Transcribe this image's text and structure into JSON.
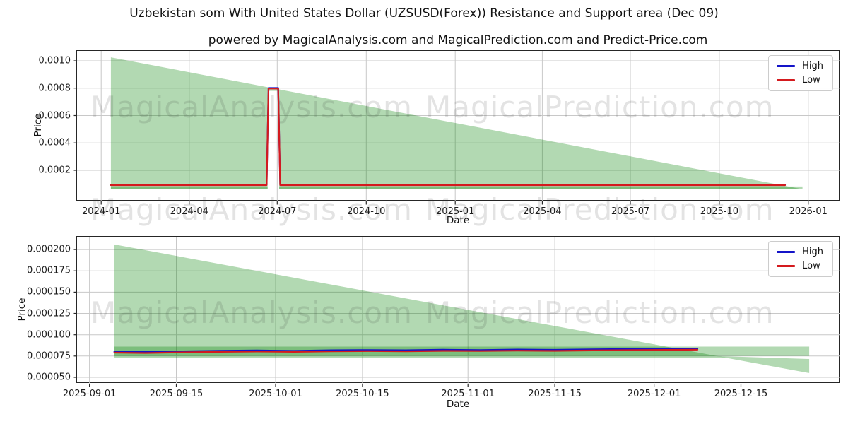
{
  "figure": {
    "suptitle": "Uzbekistan som With United States Dollar (UZSUSD(Forex)) Resistance and Support area (Dec 09)",
    "title": "powered by MagicalAnalysis.com and MagicalPrediction.com and Predict-Price.com"
  },
  "watermarks": {
    "left": "MagicalAnalysis.com",
    "right": "MagicalPrediction.com"
  },
  "colors": {
    "high": "#1414c8",
    "low": "#d41a1e",
    "area_fill": "rgba(0,128,0,0.30)",
    "grid": "#c8c8c8",
    "spine": "#262626"
  },
  "chart_data": [
    {
      "type": "line",
      "xlabel": "Date",
      "ylabel": "Price",
      "grid": true,
      "legend_position": "upper right",
      "x_range": [
        "2023-12-07",
        "2026-02-03"
      ],
      "y_range": [
        -2.71e-05,
        0.0010722
      ],
      "x_ticks": [
        [
          "2024-01-01",
          "2024-01"
        ],
        [
          "2024-04-01",
          "2024-04"
        ],
        [
          "2024-07-01",
          "2024-07"
        ],
        [
          "2024-10-01",
          "2024-10"
        ],
        [
          "2025-01-01",
          "2025-01"
        ],
        [
          "2025-04-01",
          "2025-04"
        ],
        [
          "2025-07-01",
          "2025-07"
        ],
        [
          "2025-10-01",
          "2025-10"
        ],
        [
          "2026-01-01",
          "2026-01"
        ]
      ],
      "y_ticks": [
        [
          0.0002,
          "0.0002"
        ],
        [
          0.0004,
          "0.0004"
        ],
        [
          0.0006,
          "0.0006"
        ],
        [
          0.0008,
          "0.0008"
        ],
        [
          0.001,
          "0.0010"
        ]
      ],
      "series": [
        {
          "name": "High",
          "color": "#1414c8",
          "points": [
            [
              "2024-01-11",
              9.55e-05
            ],
            [
              "2024-06-20",
              9.55e-05
            ],
            [
              "2024-06-22",
              0.000801
            ],
            [
              "2024-07-02",
              0.000801
            ],
            [
              "2024-07-04",
              9.55e-05
            ],
            [
              "2025-12-08",
              9.55e-05
            ]
          ]
        },
        {
          "name": "Low",
          "color": "#d41a1e",
          "points": [
            [
              "2024-01-11",
              9.15e-05
            ],
            [
              "2024-06-20",
              9.15e-05
            ],
            [
              "2024-06-22",
              0.000797
            ],
            [
              "2024-07-02",
              0.000797
            ],
            [
              "2024-07-04",
              9.15e-05
            ],
            [
              "2025-12-08",
              9.15e-05
            ]
          ]
        }
      ],
      "areas": [
        {
          "name": "resistance-triangle",
          "points": [
            [
              "2024-01-11",
              0.001025
            ],
            [
              "2025-12-26",
              6.2e-05
            ],
            [
              "2024-01-11",
              6.2e-05
            ]
          ],
          "holes": [
            [
              [
                "2024-06-21",
                0.00078
              ],
              [
                "2024-07-03",
                0.00078
              ],
              [
                "2024-07-03",
                6.2e-05
              ],
              [
                "2024-06-21",
                6.2e-05
              ]
            ]
          ]
        },
        {
          "name": "support-band-left",
          "points": [
            [
              "2024-01-11",
              8.2e-05
            ],
            [
              "2024-06-21",
              8.2e-05
            ],
            [
              "2024-06-21",
              6.2e-05
            ],
            [
              "2024-01-11",
              6.2e-05
            ]
          ]
        },
        {
          "name": "support-band-right",
          "points": [
            [
              "2024-07-03",
              8.2e-05
            ],
            [
              "2025-12-26",
              8.2e-05
            ],
            [
              "2025-12-26",
              6.2e-05
            ],
            [
              "2024-07-03",
              6.2e-05
            ]
          ]
        }
      ]
    },
    {
      "type": "line",
      "xlabel": "Date",
      "ylabel": "Price",
      "grid": true,
      "legend_position": "upper right",
      "x_range": [
        "2025-08-30",
        "2025-12-31"
      ],
      "y_range": [
        4.25e-05,
        0.000215
      ],
      "x_ticks": [
        [
          "2025-09-01",
          "2025-09-01"
        ],
        [
          "2025-09-15",
          "2025-09-15"
        ],
        [
          "2025-10-01",
          "2025-10-01"
        ],
        [
          "2025-10-15",
          "2025-10-15"
        ],
        [
          "2025-11-01",
          "2025-11-01"
        ],
        [
          "2025-11-15",
          "2025-11-15"
        ],
        [
          "2025-12-01",
          "2025-12-01"
        ],
        [
          "2025-12-15",
          "2025-12-15"
        ]
      ],
      "y_ticks": [
        [
          5e-05,
          "0.000050"
        ],
        [
          7.5e-05,
          "0.000075"
        ],
        [
          0.0001,
          "0.000100"
        ],
        [
          0.000125,
          "0.000125"
        ],
        [
          0.00015,
          "0.000150"
        ],
        [
          0.000175,
          "0.000175"
        ],
        [
          0.0002,
          "0.000200"
        ]
      ],
      "series": [
        {
          "name": "High",
          "color": "#1414c8",
          "points": [
            [
              "2025-09-05",
              8.01e-05
            ],
            [
              "2025-09-10",
              7.97e-05
            ],
            [
              "2025-09-16",
              8.06e-05
            ],
            [
              "2025-09-22",
              8.12e-05
            ],
            [
              "2025-09-28",
              8.16e-05
            ],
            [
              "2025-10-04",
              8.11e-05
            ],
            [
              "2025-10-10",
              8.18e-05
            ],
            [
              "2025-10-16",
              8.21e-05
            ],
            [
              "2025-10-22",
              8.18e-05
            ],
            [
              "2025-10-28",
              8.24e-05
            ],
            [
              "2025-11-03",
              8.21e-05
            ],
            [
              "2025-11-09",
              8.26e-05
            ],
            [
              "2025-11-15",
              8.23e-05
            ],
            [
              "2025-11-21",
              8.29e-05
            ],
            [
              "2025-11-27",
              8.32e-05
            ],
            [
              "2025-12-03",
              8.34e-05
            ],
            [
              "2025-12-08",
              8.36e-05
            ]
          ]
        },
        {
          "name": "Low",
          "color": "#d41a1e",
          "points": [
            [
              "2025-09-05",
              7.9e-05
            ],
            [
              "2025-09-10",
              7.86e-05
            ],
            [
              "2025-09-16",
              7.93e-05
            ],
            [
              "2025-09-22",
              7.99e-05
            ],
            [
              "2025-09-28",
              8.03e-05
            ],
            [
              "2025-10-04",
              7.99e-05
            ],
            [
              "2025-10-10",
              8.05e-05
            ],
            [
              "2025-10-16",
              8.08e-05
            ],
            [
              "2025-10-22",
              8.06e-05
            ],
            [
              "2025-10-28",
              8.11e-05
            ],
            [
              "2025-11-03",
              8.09e-05
            ],
            [
              "2025-11-09",
              8.13e-05
            ],
            [
              "2025-11-15",
              8.11e-05
            ],
            [
              "2025-11-21",
              8.16e-05
            ],
            [
              "2025-11-27",
              8.19e-05
            ],
            [
              "2025-12-03",
              8.22e-05
            ],
            [
              "2025-12-08",
              8.25e-05
            ]
          ]
        }
      ],
      "areas": [
        {
          "name": "resistance-triangle",
          "points": [
            [
              "2025-09-05",
              0.000206
            ],
            [
              "2025-12-13",
              7.25e-05
            ],
            [
              "2025-09-05",
              7.25e-05
            ]
          ]
        },
        {
          "name": "support-band",
          "points": [
            [
              "2025-09-05",
              8.6e-05
            ],
            [
              "2025-12-26",
              8.6e-05
            ],
            [
              "2025-12-26",
              7.5e-05
            ],
            [
              "2025-09-05",
              7.5e-05
            ]
          ]
        },
        {
          "name": "resistance-wedge",
          "points": [
            [
              "2025-12-11",
              7.5e-05
            ],
            [
              "2025-12-26",
              7.15e-05
            ],
            [
              "2025-12-26",
              5.5e-05
            ]
          ]
        }
      ]
    }
  ]
}
